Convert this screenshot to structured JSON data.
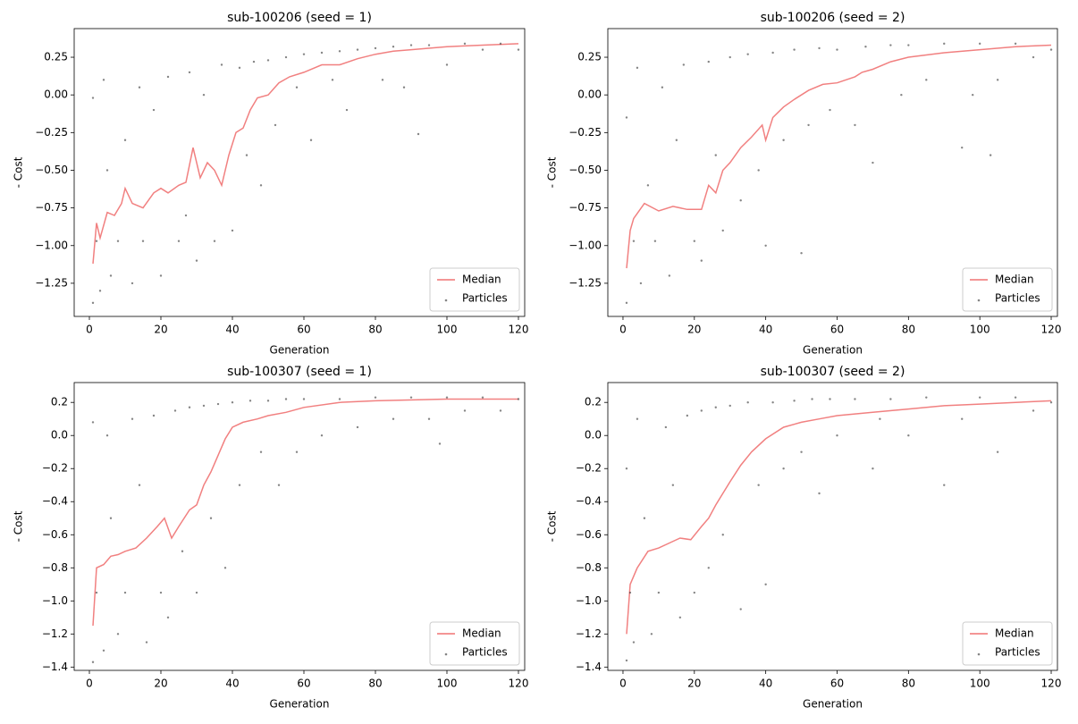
{
  "chart_data": [
    {
      "type": "scatter",
      "title": "sub-100206 (seed = 1)",
      "xlabel": "Generation",
      "ylabel": "- Cost",
      "xlim": [
        -4.25,
        121.75
      ],
      "xticks": [
        0,
        20,
        40,
        60,
        80,
        100,
        120
      ],
      "ylim": [
        -1.47,
        0.44
      ],
      "yticks": [
        {
          "value": -1.25,
          "label": "−1.25"
        },
        {
          "value": -1,
          "label": "−1.00"
        },
        {
          "value": -0.75,
          "label": "−0.75"
        },
        {
          "value": -0.5,
          "label": "−0.50"
        },
        {
          "value": -0.25,
          "label": "−0.25"
        },
        {
          "value": 0,
          "label": "0.00"
        },
        0.25
      ],
      "grid": false,
      "legend": "lower right",
      "series": [
        {
          "name": "Median",
          "mark": "line",
          "color": "#f07272",
          "x": [
            1,
            2,
            3,
            5,
            7,
            9,
            10,
            12,
            15,
            18,
            20,
            22,
            25,
            27,
            29,
            31,
            33,
            35,
            37,
            39,
            41,
            43,
            45,
            47,
            50,
            53,
            56,
            60,
            65,
            70,
            75,
            80,
            85,
            90,
            100,
            110,
            120
          ],
          "values": [
            -1.12,
            -0.85,
            -0.95,
            -0.78,
            -0.8,
            -0.72,
            -0.62,
            -0.72,
            -0.75,
            -0.65,
            -0.62,
            -0.65,
            -0.6,
            -0.58,
            -0.35,
            -0.55,
            -0.45,
            -0.5,
            -0.6,
            -0.4,
            -0.25,
            -0.22,
            -0.1,
            -0.02,
            0.0,
            0.08,
            0.12,
            0.15,
            0.2,
            0.2,
            0.24,
            0.27,
            0.29,
            0.3,
            0.32,
            0.33,
            0.34
          ]
        },
        {
          "name": "Particles",
          "mark": "points",
          "color": "#333333",
          "x": [
            1,
            1,
            2,
            3,
            4,
            5,
            6,
            8,
            10,
            12,
            14,
            15,
            18,
            20,
            22,
            25,
            27,
            28,
            30,
            32,
            35,
            37,
            40,
            42,
            44,
            46,
            48,
            50,
            52,
            55,
            58,
            60,
            62,
            65,
            68,
            70,
            72,
            75,
            80,
            82,
            85,
            88,
            90,
            92,
            95,
            100,
            105,
            110,
            115,
            120
          ],
          "values": [
            -1.38,
            -0.02,
            -0.97,
            -1.3,
            0.1,
            -0.5,
            -1.2,
            -0.97,
            -0.3,
            -1.25,
            0.05,
            -0.97,
            -0.1,
            -1.2,
            0.12,
            -0.97,
            -0.8,
            0.15,
            -1.1,
            0.0,
            -0.97,
            0.2,
            -0.9,
            0.18,
            -0.4,
            0.22,
            -0.6,
            0.23,
            -0.2,
            0.25,
            0.05,
            0.27,
            -0.3,
            0.28,
            0.1,
            0.29,
            -0.1,
            0.3,
            0.31,
            0.1,
            0.32,
            0.05,
            0.33,
            -0.26,
            0.33,
            0.2,
            0.34,
            0.3,
            0.34,
            0.3
          ]
        }
      ]
    },
    {
      "type": "scatter",
      "title": "sub-100206 (seed = 2)",
      "xlabel": "Generation",
      "ylabel": "- Cost",
      "xlim": [
        -4.25,
        121.75
      ],
      "xticks": [
        0,
        20,
        40,
        60,
        80,
        100,
        120
      ],
      "ylim": [
        -1.47,
        0.44
      ],
      "yticks": [
        {
          "value": -1.25,
          "label": "−1.25"
        },
        {
          "value": -1,
          "label": "−1.00"
        },
        {
          "value": -0.75,
          "label": "−0.75"
        },
        {
          "value": -0.5,
          "label": "−0.50"
        },
        {
          "value": -0.25,
          "label": "−0.25"
        },
        {
          "value": 0,
          "label": "0.00"
        },
        0.25
      ],
      "grid": false,
      "legend": "lower right",
      "series": [
        {
          "name": "Median",
          "mark": "line",
          "color": "#f07272",
          "x": [
            1,
            2,
            3,
            6,
            10,
            14,
            18,
            22,
            24,
            26,
            28,
            30,
            33,
            36,
            39,
            40,
            42,
            45,
            48,
            52,
            56,
            60,
            65,
            67,
            70,
            75,
            80,
            90,
            100,
            110,
            120
          ],
          "values": [
            -1.15,
            -0.9,
            -0.82,
            -0.72,
            -0.77,
            -0.74,
            -0.76,
            -0.76,
            -0.6,
            -0.65,
            -0.5,
            -0.45,
            -0.35,
            -0.28,
            -0.2,
            -0.3,
            -0.15,
            -0.08,
            -0.03,
            0.03,
            0.07,
            0.08,
            0.12,
            0.15,
            0.17,
            0.22,
            0.25,
            0.28,
            0.3,
            0.32,
            0.33
          ]
        },
        {
          "name": "Particles",
          "mark": "points",
          "color": "#333333",
          "x": [
            1,
            1,
            3,
            4,
            5,
            7,
            9,
            11,
            13,
            15,
            17,
            20,
            22,
            24,
            26,
            28,
            30,
            33,
            35,
            38,
            40,
            42,
            45,
            48,
            50,
            52,
            55,
            58,
            60,
            65,
            68,
            70,
            75,
            78,
            80,
            85,
            90,
            95,
            98,
            100,
            103,
            105,
            110,
            115,
            120
          ],
          "values": [
            -1.38,
            -0.15,
            -0.97,
            0.18,
            -1.25,
            -0.6,
            -0.97,
            0.05,
            -1.2,
            -0.3,
            0.2,
            -0.97,
            -1.1,
            0.22,
            -0.4,
            -0.9,
            0.25,
            -0.7,
            0.27,
            -0.5,
            -1.0,
            0.28,
            -0.3,
            0.3,
            -1.05,
            -0.2,
            0.31,
            -0.1,
            0.3,
            -0.2,
            0.32,
            -0.45,
            0.33,
            0.0,
            0.33,
            0.1,
            0.34,
            -0.35,
            0.0,
            0.34,
            -0.4,
            0.1,
            0.34,
            0.25,
            0.3
          ]
        }
      ]
    },
    {
      "type": "scatter",
      "title": "sub-100307 (seed = 1)",
      "xlabel": "Generation",
      "ylabel": "- Cost",
      "xlim": [
        -4.25,
        121.75
      ],
      "xticks": [
        0,
        20,
        40,
        60,
        80,
        100,
        120
      ],
      "ylim": [
        -1.42,
        0.32
      ],
      "yticks": [
        {
          "value": -1.4,
          "label": "−1.4"
        },
        {
          "value": -1.2,
          "label": "−1.2"
        },
        {
          "value": -1,
          "label": "−1.0"
        },
        {
          "value": -0.8,
          "label": "−0.8"
        },
        {
          "value": -0.6,
          "label": "−0.6"
        },
        {
          "value": -0.4,
          "label": "−0.4"
        },
        {
          "value": -0.2,
          "label": "−0.2"
        },
        {
          "value": 0,
          "label": "0.0"
        },
        0.2
      ],
      "grid": false,
      "legend": "lower right",
      "series": [
        {
          "name": "Median",
          "mark": "line",
          "color": "#f07272",
          "x": [
            1,
            2,
            4,
            6,
            8,
            10,
            13,
            16,
            19,
            21,
            23,
            25,
            28,
            30,
            32,
            34,
            36,
            38,
            40,
            43,
            47,
            50,
            55,
            60,
            70,
            80,
            100,
            120
          ],
          "values": [
            -1.15,
            -0.8,
            -0.78,
            -0.73,
            -0.72,
            -0.7,
            -0.68,
            -0.62,
            -0.55,
            -0.5,
            -0.62,
            -0.55,
            -0.45,
            -0.42,
            -0.3,
            -0.22,
            -0.12,
            -0.02,
            0.05,
            0.08,
            0.1,
            0.12,
            0.14,
            0.17,
            0.2,
            0.21,
            0.22,
            0.22
          ]
        },
        {
          "name": "Particles",
          "mark": "points",
          "color": "#333333",
          "x": [
            1,
            1,
            2,
            4,
            5,
            6,
            8,
            10,
            12,
            14,
            16,
            18,
            20,
            22,
            24,
            26,
            28,
            30,
            32,
            34,
            36,
            38,
            40,
            42,
            45,
            48,
            50,
            53,
            55,
            58,
            60,
            65,
            70,
            75,
            80,
            85,
            90,
            95,
            98,
            100,
            105,
            110,
            115,
            120
          ],
          "values": [
            -1.37,
            0.08,
            -0.95,
            -1.3,
            0.0,
            -0.5,
            -1.2,
            -0.95,
            0.1,
            -0.3,
            -1.25,
            0.12,
            -0.95,
            -1.1,
            0.15,
            -0.7,
            0.17,
            -0.95,
            0.18,
            -0.5,
            0.19,
            -0.8,
            0.2,
            -0.3,
            0.21,
            -0.1,
            0.21,
            -0.3,
            0.22,
            -0.1,
            0.22,
            0.0,
            0.22,
            0.05,
            0.23,
            0.1,
            0.23,
            0.1,
            -0.05,
            0.23,
            0.15,
            0.23,
            0.15,
            0.22
          ]
        }
      ]
    },
    {
      "type": "scatter",
      "title": "sub-100307 (seed = 2)",
      "xlabel": "Generation",
      "ylabel": "- Cost",
      "xlim": [
        -4.25,
        121.75
      ],
      "xticks": [
        0,
        20,
        40,
        60,
        80,
        100,
        120
      ],
      "ylim": [
        -1.42,
        0.32
      ],
      "yticks": [
        {
          "value": -1.4,
          "label": "−1.4"
        },
        {
          "value": -1.2,
          "label": "−1.2"
        },
        {
          "value": -1,
          "label": "−1.0"
        },
        {
          "value": -0.8,
          "label": "−0.8"
        },
        {
          "value": -0.6,
          "label": "−0.6"
        },
        {
          "value": -0.4,
          "label": "−0.4"
        },
        {
          "value": -0.2,
          "label": "−0.2"
        },
        {
          "value": 0,
          "label": "0.0"
        },
        0.2
      ],
      "grid": false,
      "legend": "lower right",
      "series": [
        {
          "name": "Median",
          "mark": "line",
          "color": "#f07272",
          "x": [
            1,
            2,
            4,
            7,
            10,
            13,
            16,
            19,
            22,
            24,
            26,
            28,
            30,
            33,
            36,
            40,
            45,
            50,
            55,
            60,
            70,
            80,
            90,
            100,
            110,
            120
          ],
          "values": [
            -1.2,
            -0.9,
            -0.8,
            -0.7,
            -0.68,
            -0.65,
            -0.62,
            -0.63,
            -0.55,
            -0.5,
            -0.42,
            -0.35,
            -0.28,
            -0.18,
            -0.1,
            -0.02,
            0.05,
            0.08,
            0.1,
            0.12,
            0.14,
            0.16,
            0.18,
            0.19,
            0.2,
            0.21
          ]
        },
        {
          "name": "Particles",
          "mark": "points",
          "color": "#333333",
          "x": [
            1,
            1,
            2,
            3,
            4,
            6,
            8,
            10,
            12,
            14,
            16,
            18,
            20,
            22,
            24,
            26,
            28,
            30,
            33,
            35,
            38,
            40,
            42,
            45,
            48,
            50,
            53,
            55,
            58,
            60,
            65,
            70,
            72,
            75,
            80,
            85,
            90,
            95,
            100,
            105,
            110,
            115,
            120
          ],
          "values": [
            -1.36,
            -0.2,
            -0.95,
            -1.25,
            0.1,
            -0.5,
            -1.2,
            -0.95,
            0.05,
            -0.3,
            -1.1,
            0.12,
            -0.95,
            0.15,
            -0.8,
            0.17,
            -0.6,
            0.18,
            -1.05,
            0.2,
            -0.3,
            -0.9,
            0.2,
            -0.2,
            0.21,
            -0.1,
            0.22,
            -0.35,
            0.22,
            0.0,
            0.22,
            -0.2,
            0.1,
            0.22,
            0.0,
            0.23,
            -0.3,
            0.1,
            0.23,
            -0.1,
            0.23,
            0.15,
            0.2
          ]
        }
      ]
    }
  ]
}
